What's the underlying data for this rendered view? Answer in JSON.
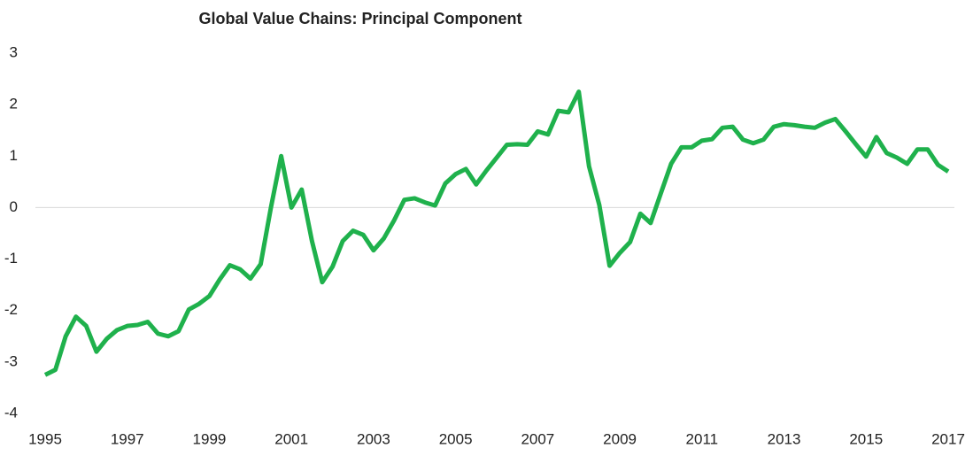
{
  "chart_data": {
    "type": "line",
    "title": "Global Value Chains: Principal Component",
    "x": [
      1995,
      1995.25,
      1995.5,
      1995.75,
      1996,
      1996.25,
      1996.5,
      1996.75,
      1997,
      1997.25,
      1997.5,
      1997.75,
      1998,
      1998.25,
      1998.5,
      1998.75,
      1999,
      1999.25,
      1999.5,
      1999.75,
      2000,
      2000.25,
      2000.5,
      2000.75,
      2001,
      2001.25,
      2001.5,
      2001.75,
      2002,
      2002.25,
      2002.5,
      2002.75,
      2003,
      2003.25,
      2003.5,
      2003.75,
      2004,
      2004.25,
      2004.5,
      2004.75,
      2005,
      2005.25,
      2005.5,
      2005.75,
      2006,
      2006.25,
      2006.5,
      2006.75,
      2007,
      2007.25,
      2007.5,
      2007.75,
      2008,
      2008.25,
      2008.5,
      2008.75,
      2009,
      2009.25,
      2009.5,
      2009.75,
      2010,
      2010.25,
      2010.5,
      2010.75,
      2011,
      2011.25,
      2011.5,
      2011.75,
      2012,
      2012.25,
      2012.5,
      2012.75,
      2013,
      2013.25,
      2013.5,
      2013.75,
      2014,
      2014.25,
      2014.5,
      2014.75,
      2015,
      2015.25,
      2015.5,
      2015.75,
      2016,
      2016.25,
      2016.5,
      2016.75,
      2017
    ],
    "series": [
      {
        "color": "#1fb14c",
        "values": [
          -3.25,
          -3.15,
          -2.5,
          -2.12,
          -2.3,
          -2.8,
          -2.55,
          -2.38,
          -2.3,
          -2.28,
          -2.22,
          -2.45,
          -2.5,
          -2.4,
          -1.98,
          -1.87,
          -1.72,
          -1.4,
          -1.12,
          -1.2,
          -1.38,
          -1.1,
          0.0,
          1.0,
          0.0,
          0.35,
          -0.65,
          -1.45,
          -1.15,
          -0.65,
          -0.45,
          -0.53,
          -0.83,
          -0.6,
          -0.25,
          0.15,
          0.18,
          0.1,
          0.04,
          0.47,
          0.65,
          0.75,
          0.45,
          0.72,
          0.97,
          1.22,
          1.23,
          1.22,
          1.48,
          1.42,
          1.88,
          1.85,
          2.25,
          0.8,
          0.05,
          -1.13,
          -0.88,
          -0.67,
          -0.12,
          -0.3,
          0.28,
          0.85,
          1.17,
          1.17,
          1.3,
          1.33,
          1.55,
          1.57,
          1.32,
          1.25,
          1.32,
          1.57,
          1.62,
          1.6,
          1.57,
          1.55,
          1.65,
          1.72,
          1.48,
          1.23,
          0.99,
          1.37,
          1.06,
          0.97,
          0.85,
          1.13,
          1.13,
          0.83,
          0.7
        ]
      }
    ],
    "xlim": [
      1995,
      2017
    ],
    "xticks": [
      1995,
      1997,
      1999,
      2001,
      2003,
      2005,
      2007,
      2009,
      2011,
      2013,
      2015,
      2017
    ],
    "ylim": [
      -4,
      3
    ],
    "yticks": [
      -4,
      -3,
      -2,
      -1,
      0,
      1,
      2,
      3
    ]
  }
}
